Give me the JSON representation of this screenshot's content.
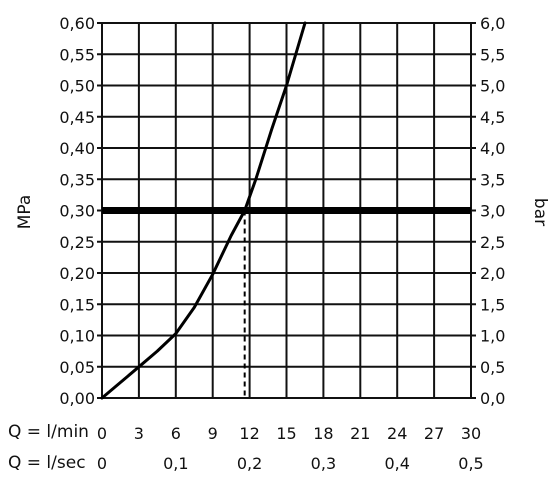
{
  "chart_data": {
    "type": "line",
    "title": "",
    "ylabel": "MPa",
    "y2label": "bar",
    "xlabel": "Q = l/min",
    "x2label": "Q = l/sec",
    "xlim": [
      0,
      30
    ],
    "ylim": [
      0,
      0.6
    ],
    "y2lim": [
      0,
      6
    ],
    "grid": true,
    "x_ticks": [
      "0",
      "3",
      "6",
      "9",
      "12",
      "15",
      "18",
      "21",
      "24",
      "27",
      "30"
    ],
    "x2_ticks": [
      {
        "label": "0",
        "value": 0
      },
      {
        "label": "0,1",
        "value": 0.1
      },
      {
        "label": "0,2",
        "value": 0.2
      },
      {
        "label": "0,3",
        "value": 0.3
      },
      {
        "label": "0,4",
        "value": 0.4
      },
      {
        "label": "0,5",
        "value": 0.5
      }
    ],
    "y_ticks": [
      "0,00",
      "0,05",
      "0,10",
      "0,15",
      "0,20",
      "0,25",
      "0,30",
      "0,35",
      "0,40",
      "0,45",
      "0,50",
      "0,55",
      "0,60"
    ],
    "y2_ticks": [
      "0,0",
      "0,5",
      "1,0",
      "1,5",
      "2,0",
      "2,5",
      "3,0",
      "3,5",
      "4,0",
      "4,5",
      "5,0",
      "5,5",
      "6,0"
    ],
    "series": [
      {
        "x": [
          0,
          1.5,
          3,
          4.5,
          6,
          7.5,
          9,
          10.5,
          11.6,
          12.5,
          13.8,
          15,
          16.5
        ],
        "y": [
          0,
          0.025,
          0.05,
          0.075,
          0.103,
          0.145,
          0.198,
          0.26,
          0.3,
          0.35,
          0.43,
          0.5,
          0.6
        ]
      }
    ],
    "reference_line_y": 0.3,
    "marker_x": 11.6
  }
}
